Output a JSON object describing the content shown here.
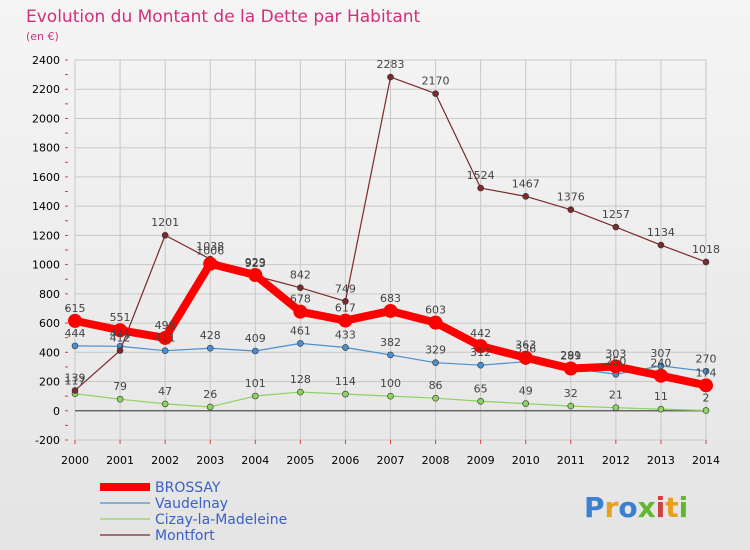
{
  "chart_data": {
    "type": "line",
    "title": "Evolution du Montant de la Dette par Habitant",
    "subtitle": "(en €)",
    "x": [
      "2000",
      "2001",
      "2002",
      "2003",
      "2004",
      "2005",
      "2006",
      "2007",
      "2008",
      "2009",
      "2010",
      "2011",
      "2012",
      "2013",
      "2014"
    ],
    "ylim": [
      -200,
      2400
    ],
    "yticks": [
      -200,
      0,
      200,
      400,
      600,
      800,
      1000,
      1200,
      1400,
      1600,
      1800,
      2000,
      2200,
      2400
    ],
    "grid": true,
    "legend_position": "bottom-left",
    "series": [
      {
        "name": "BROSSAY",
        "color": "#ff0000",
        "values": [
          615,
          551,
          498,
          1006,
          929,
          678,
          617,
          683,
          603,
          442,
          363,
          289,
          303,
          240,
          174
        ]
      },
      {
        "name": "Vaudelnay",
        "color": "#4a8fcf",
        "values": [
          444,
          441,
          411,
          428,
          409,
          461,
          433,
          382,
          329,
          312,
          336,
          291,
          250,
          307,
          270
        ]
      },
      {
        "name": "Cizay-la-Madeleine",
        "color": "#8dd35f",
        "values": [
          117,
          79,
          47,
          26,
          101,
          128,
          114,
          100,
          86,
          65,
          49,
          32,
          21,
          11,
          2
        ]
      },
      {
        "name": "Montfort",
        "color": "#7a2a2a",
        "values": [
          139,
          412,
          1201,
          1038,
          923,
          842,
          749,
          2283,
          2170,
          1524,
          1467,
          1376,
          1257,
          1134,
          1018
        ]
      }
    ]
  },
  "logo": {
    "text": "Proxiti"
  }
}
